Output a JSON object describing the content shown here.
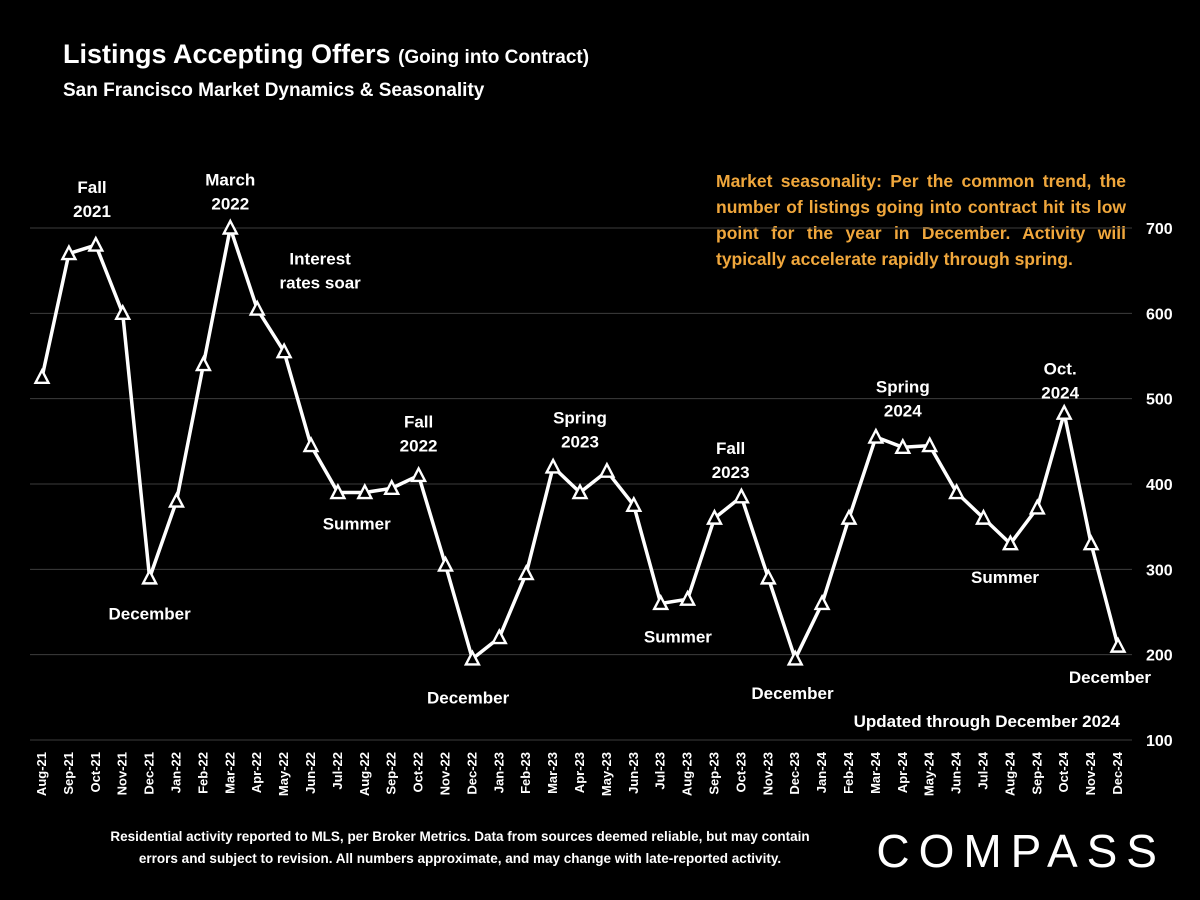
{
  "header": {
    "title": "Listings Accepting Offers",
    "title_suffix": "(Going into Contract)",
    "subtitle": "San Francisco Market Dynamics & Seasonality"
  },
  "callout": {
    "text": "Market seasonality:  Per the common trend, the number of listings going into contract hit its low point for the year in December.  Activity will typically accelerate rapidly through spring.",
    "color": "#F0A73C"
  },
  "chart_data": {
    "type": "line",
    "title": "Listings Accepting Offers (Going into Contract)",
    "xlabel": "",
    "ylabel": "",
    "x": [
      "Aug-21",
      "Sep-21",
      "Oct-21",
      "Nov-21",
      "Dec-21",
      "Jan-22",
      "Feb-22",
      "Mar-22",
      "Apr-22",
      "May-22",
      "Jun-22",
      "Jul-22",
      "Aug-22",
      "Sep-22",
      "Oct-22",
      "Nov-22",
      "Dec-22",
      "Jan-23",
      "Feb-23",
      "Mar-23",
      "Apr-23",
      "May-23",
      "Jun-23",
      "Jul-23",
      "Aug-23",
      "Sep-23",
      "Oct-23",
      "Nov-23",
      "Dec-23",
      "Jan-24",
      "Feb-24",
      "Mar-24",
      "Apr-24",
      "May-24",
      "Jun-24",
      "Jul-24",
      "Aug-24",
      "Sep-24",
      "Oct-24",
      "Nov-24",
      "Dec-24"
    ],
    "values": [
      525,
      670,
      680,
      600,
      290,
      380,
      540,
      700,
      605,
      555,
      445,
      390,
      390,
      395,
      410,
      305,
      195,
      220,
      295,
      420,
      390,
      415,
      375,
      260,
      265,
      360,
      385,
      290,
      195,
      260,
      360,
      455,
      443,
      445,
      390,
      360,
      330,
      372,
      483,
      330,
      210
    ],
    "ylim": [
      100,
      700
    ],
    "yticks": [
      100,
      200,
      300,
      400,
      500,
      600,
      700
    ],
    "grid": true,
    "line_color": "#FFFFFF",
    "marker": "triangle-up-open",
    "annotations": [
      {
        "lines": [
          "Fall",
          "2021"
        ],
        "x": 1.86,
        "y": 734
      },
      {
        "lines": [
          "March",
          "2022"
        ],
        "x": 7.0,
        "y": 743
      },
      {
        "lines": [
          "Interest",
          "rates soar"
        ],
        "x": 10.34,
        "y": 650
      },
      {
        "lines": [
          "December"
        ],
        "x": 4.0,
        "y": 248
      },
      {
        "lines": [
          "Summer"
        ],
        "x": 11.7,
        "y": 354
      },
      {
        "lines": [
          "Fall",
          "2022"
        ],
        "x": 14.0,
        "y": 459
      },
      {
        "lines": [
          "December"
        ],
        "x": 15.84,
        "y": 150
      },
      {
        "lines": [
          "Spring",
          "2023"
        ],
        "x": 20.0,
        "y": 464
      },
      {
        "lines": [
          "Summer"
        ],
        "x": 23.64,
        "y": 221
      },
      {
        "lines": [
          "Fall",
          "2023"
        ],
        "x": 25.6,
        "y": 428
      },
      {
        "lines": [
          "December"
        ],
        "x": 27.9,
        "y": 155
      },
      {
        "lines": [
          "Spring",
          "2024"
        ],
        "x": 32.0,
        "y": 500
      },
      {
        "lines": [
          "Summer"
        ],
        "x": 35.8,
        "y": 291
      },
      {
        "lines": [
          "Oct.",
          "2024"
        ],
        "x": 37.85,
        "y": 521
      },
      {
        "lines": [
          "December"
        ],
        "x": 39.7,
        "y": 174
      }
    ]
  },
  "updated_note": "Updated through December 2024",
  "footer": {
    "disclaimer_line1": "Residential activity reported to MLS, per Broker Metrics. Data from sources deemed reliable, but may contain",
    "disclaimer_line2": "errors and subject to revision. All numbers approximate, and may change with late-reported activity.",
    "brand": "COMPASS"
  }
}
